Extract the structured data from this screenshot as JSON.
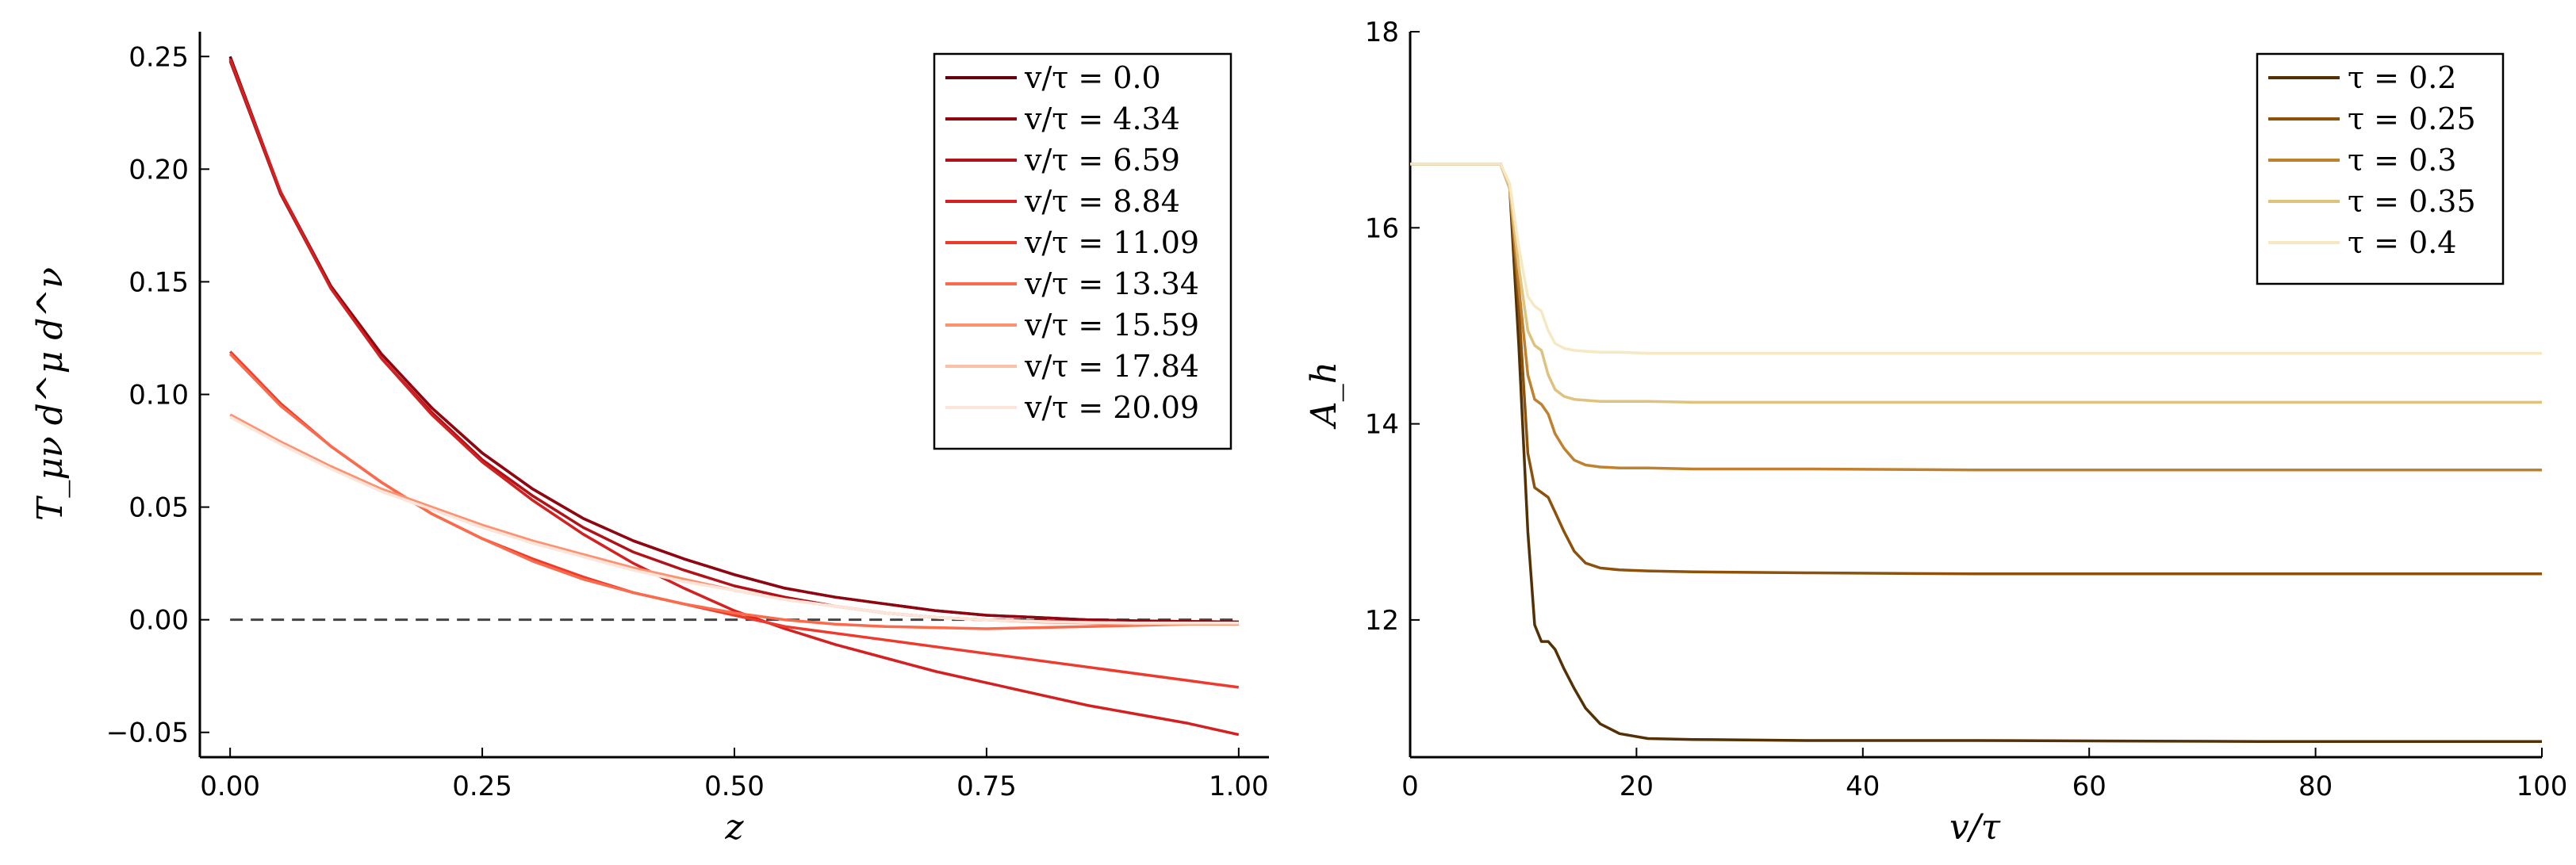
{
  "chart_data": [
    {
      "type": "line",
      "xlabel": "z",
      "ylabel": "T_μν d^μ d^ν",
      "xlim": [
        -0.03,
        1.03
      ],
      "ylim": [
        -0.061,
        0.261
      ],
      "xticks": [
        0.0,
        0.25,
        0.5,
        0.75,
        1.0
      ],
      "xtick_labels": [
        "0.00",
        "0.25",
        "0.50",
        "0.75",
        "1.00"
      ],
      "yticks": [
        -0.05,
        0.0,
        0.05,
        0.1,
        0.15,
        0.2,
        0.25
      ],
      "ytick_labels": [
        "−0.05",
        "0.00",
        "0.05",
        "0.10",
        "0.15",
        "0.20",
        "0.25"
      ],
      "hline": 0.0,
      "legend_position": "top-right",
      "x": [
        0.0,
        0.05,
        0.1,
        0.15,
        0.2,
        0.25,
        0.3,
        0.35,
        0.4,
        0.45,
        0.5,
        0.55,
        0.6,
        0.65,
        0.7,
        0.75,
        0.8,
        0.85,
        0.9,
        0.95,
        1.0
      ],
      "series": [
        {
          "name": "v/τ = 0.0",
          "color": "#67000d",
          "values": [
            0.25,
            0.19,
            0.148,
            0.118,
            0.094,
            0.074,
            0.058,
            0.045,
            0.035,
            0.027,
            0.02,
            0.014,
            0.01,
            0.007,
            0.004,
            0.002,
            0.001,
            0.0,
            -0.0005,
            -0.0008,
            -0.001
          ]
        },
        {
          "name": "v/τ = 4.34",
          "color": "#8f0611",
          "values": [
            0.249,
            0.19,
            0.148,
            0.118,
            0.094,
            0.074,
            0.058,
            0.045,
            0.035,
            0.027,
            0.02,
            0.014,
            0.01,
            0.007,
            0.004,
            0.002,
            0.001,
            0.0,
            -0.0005,
            -0.0008,
            -0.001
          ]
        },
        {
          "name": "v/τ = 6.59",
          "color": "#b11218",
          "values": [
            0.248,
            0.189,
            0.147,
            0.116,
            0.092,
            0.071,
            0.055,
            0.041,
            0.03,
            0.022,
            0.015,
            0.01,
            0.006,
            0.003,
            0.001,
            0.0,
            -0.0005,
            -0.001,
            -0.0012,
            -0.0013,
            -0.0015
          ]
        },
        {
          "name": "v/τ = 8.84",
          "color": "#d42020",
          "values": [
            0.249,
            0.19,
            0.147,
            0.116,
            0.091,
            0.07,
            0.053,
            0.038,
            0.025,
            0.014,
            0.004,
            -0.004,
            -0.011,
            -0.017,
            -0.023,
            -0.028,
            -0.033,
            -0.038,
            -0.042,
            -0.046,
            -0.051
          ]
        },
        {
          "name": "v/τ = 11.09",
          "color": "#ee3a2c",
          "values": [
            0.119,
            0.096,
            0.077,
            0.061,
            0.047,
            0.036,
            0.027,
            0.019,
            0.012,
            0.007,
            0.002,
            -0.003,
            -0.006,
            -0.009,
            -0.012,
            -0.015,
            -0.018,
            -0.021,
            -0.024,
            -0.027,
            -0.03
          ]
        },
        {
          "name": "v/τ = 13.34",
          "color": "#fb6a4a",
          "values": [
            0.118,
            0.095,
            0.077,
            0.061,
            0.047,
            0.036,
            0.026,
            0.018,
            0.012,
            0.007,
            0.003,
            0.0,
            -0.002,
            -0.003,
            -0.0035,
            -0.004,
            -0.0035,
            -0.003,
            -0.0025,
            -0.002,
            -0.002
          ]
        },
        {
          "name": "v/τ = 15.59",
          "color": "#fc9272",
          "values": [
            0.091,
            0.079,
            0.068,
            0.058,
            0.05,
            0.042,
            0.035,
            0.029,
            0.023,
            0.018,
            0.013,
            0.009,
            0.006,
            0.003,
            0.001,
            0.0,
            -0.001,
            -0.0015,
            -0.002,
            -0.002,
            -0.002
          ]
        },
        {
          "name": "v/τ = 17.84",
          "color": "#fcc0a8",
          "values": [
            0.09,
            0.078,
            0.067,
            0.057,
            0.049,
            0.041,
            0.034,
            0.028,
            0.022,
            0.017,
            0.013,
            0.009,
            0.006,
            0.003,
            0.001,
            0.0,
            -0.0008,
            -0.0012,
            -0.0015,
            -0.0015,
            -0.0015
          ]
        },
        {
          "name": "v/τ = 20.09",
          "color": "#fde5da",
          "values": [
            0.09,
            0.078,
            0.067,
            0.057,
            0.049,
            0.041,
            0.034,
            0.028,
            0.022,
            0.017,
            0.013,
            0.009,
            0.006,
            0.003,
            0.001,
            0.0,
            -0.0008,
            -0.0012,
            -0.0015,
            -0.0015,
            -0.0015
          ]
        }
      ]
    },
    {
      "type": "line",
      "xlabel": "v/τ",
      "ylabel": "A_h",
      "xlim": [
        0,
        100
      ],
      "ylim": [
        10.6,
        18.0
      ],
      "xticks": [
        0,
        20,
        40,
        60,
        80,
        100
      ],
      "xtick_labels": [
        "0",
        "20",
        "40",
        "60",
        "80",
        "100"
      ],
      "yticks": [
        12,
        14,
        16,
        18
      ],
      "ytick_labels": [
        "12",
        "14",
        "16",
        "18"
      ],
      "legend_position": "top-right",
      "x": [
        0,
        8,
        8.8,
        9.6,
        10.4,
        11,
        11.6,
        12.2,
        12.8,
        13.6,
        14.5,
        15.5,
        16.8,
        18.5,
        21,
        25,
        35,
        50,
        75,
        100
      ],
      "series": [
        {
          "name": "τ = 0.2",
          "color": "#543005",
          "values": [
            16.65,
            16.65,
            16.4,
            14.8,
            12.9,
            11.95,
            11.78,
            11.78,
            11.7,
            11.5,
            11.3,
            11.1,
            10.94,
            10.84,
            10.79,
            10.78,
            10.77,
            10.77,
            10.76,
            10.76
          ]
        },
        {
          "name": "τ = 0.25",
          "color": "#8c510a",
          "values": [
            16.65,
            16.65,
            16.4,
            15.2,
            13.7,
            13.35,
            13.3,
            13.25,
            13.1,
            12.9,
            12.7,
            12.58,
            12.53,
            12.51,
            12.5,
            12.49,
            12.48,
            12.47,
            12.47,
            12.47
          ]
        },
        {
          "name": "τ = 0.3",
          "color": "#bf812d",
          "values": [
            16.65,
            16.65,
            16.4,
            15.4,
            14.5,
            14.25,
            14.2,
            14.1,
            13.9,
            13.75,
            13.63,
            13.58,
            13.56,
            13.55,
            13.55,
            13.54,
            13.54,
            13.53,
            13.53,
            13.53
          ]
        },
        {
          "name": "τ = 0.35",
          "color": "#dfc27d",
          "values": [
            16.65,
            16.65,
            16.4,
            15.6,
            14.95,
            14.8,
            14.75,
            14.5,
            14.35,
            14.28,
            14.25,
            14.24,
            14.23,
            14.23,
            14.23,
            14.22,
            14.22,
            14.22,
            14.22,
            14.22
          ]
        },
        {
          "name": "τ = 0.4",
          "color": "#f6e8c3",
          "values": [
            16.65,
            16.65,
            16.45,
            15.8,
            15.3,
            15.2,
            15.15,
            14.95,
            14.82,
            14.77,
            14.75,
            14.74,
            14.73,
            14.73,
            14.72,
            14.72,
            14.72,
            14.72,
            14.72,
            14.72
          ]
        }
      ]
    }
  ]
}
